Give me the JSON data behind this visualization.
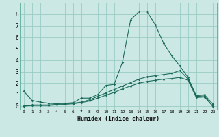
{
  "xlabel": "Humidex (Indice chaleur)",
  "bg_color": "#cce8e4",
  "grid_color": "#99ccc4",
  "line_color": "#1a6a5a",
  "xlim": [
    -0.5,
    23.5
  ],
  "ylim": [
    -0.3,
    9.0
  ],
  "xticks": [
    0,
    1,
    2,
    3,
    4,
    5,
    6,
    7,
    8,
    9,
    10,
    11,
    12,
    13,
    14,
    15,
    16,
    17,
    18,
    19,
    20,
    21,
    22,
    23
  ],
  "yticks": [
    0,
    1,
    2,
    3,
    4,
    5,
    6,
    7,
    8
  ],
  "line1_x": [
    0,
    1,
    2,
    3,
    4,
    5,
    6,
    7,
    8,
    9,
    10,
    11,
    12,
    13,
    14,
    15,
    16,
    17,
    18,
    19,
    20,
    21,
    22,
    23
  ],
  "line1_y": [
    1.3,
    0.5,
    0.35,
    0.25,
    0.2,
    0.25,
    0.3,
    0.7,
    0.7,
    1.0,
    1.8,
    1.9,
    3.8,
    7.5,
    8.2,
    8.2,
    7.1,
    5.5,
    4.4,
    3.5,
    2.5,
    0.9,
    1.0,
    0.2
  ],
  "line2_x": [
    0,
    1,
    2,
    3,
    4,
    5,
    6,
    7,
    8,
    9,
    10,
    11,
    12,
    13,
    14,
    15,
    16,
    17,
    18,
    19,
    20,
    21,
    22,
    23
  ],
  "line2_y": [
    0.0,
    0.1,
    0.1,
    0.1,
    0.15,
    0.2,
    0.25,
    0.35,
    0.55,
    0.85,
    1.15,
    1.45,
    1.75,
    2.05,
    2.35,
    2.55,
    2.65,
    2.75,
    2.85,
    3.1,
    2.35,
    0.85,
    0.9,
    0.0
  ],
  "line3_x": [
    0,
    1,
    2,
    3,
    4,
    5,
    6,
    7,
    8,
    9,
    10,
    11,
    12,
    13,
    14,
    15,
    16,
    17,
    18,
    19,
    20,
    21,
    22,
    23
  ],
  "line3_y": [
    0.0,
    0.05,
    0.05,
    0.05,
    0.1,
    0.15,
    0.2,
    0.3,
    0.45,
    0.7,
    0.95,
    1.2,
    1.5,
    1.75,
    2.0,
    2.15,
    2.25,
    2.35,
    2.4,
    2.5,
    2.25,
    0.75,
    0.8,
    0.0
  ]
}
